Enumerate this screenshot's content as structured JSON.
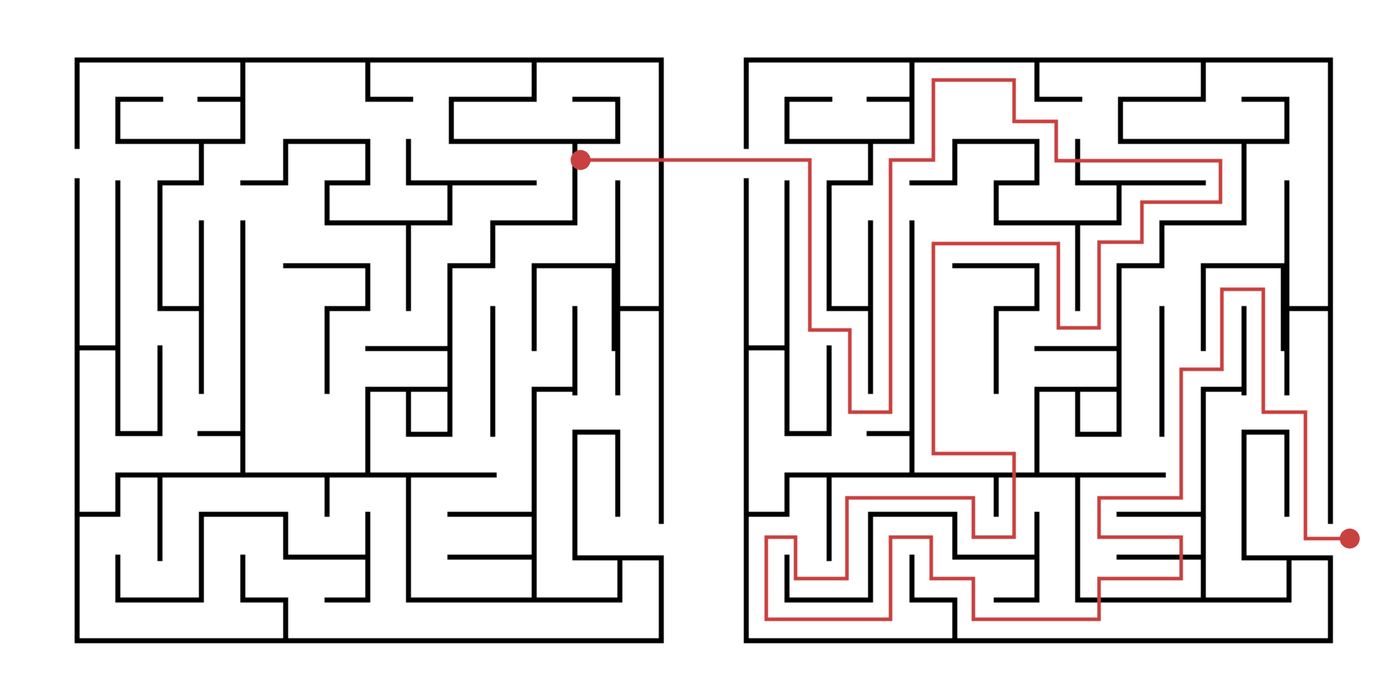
{
  "puzzle": {
    "colors": {
      "background": "#ffffff",
      "wall": "#000000",
      "solution": "#c8413f"
    },
    "unsolved_maze": {
      "state": "unsolved"
    },
    "solved_maze": {
      "state": "solved",
      "start_marker": "start-dot",
      "end_marker": "end-dot"
    }
  }
}
